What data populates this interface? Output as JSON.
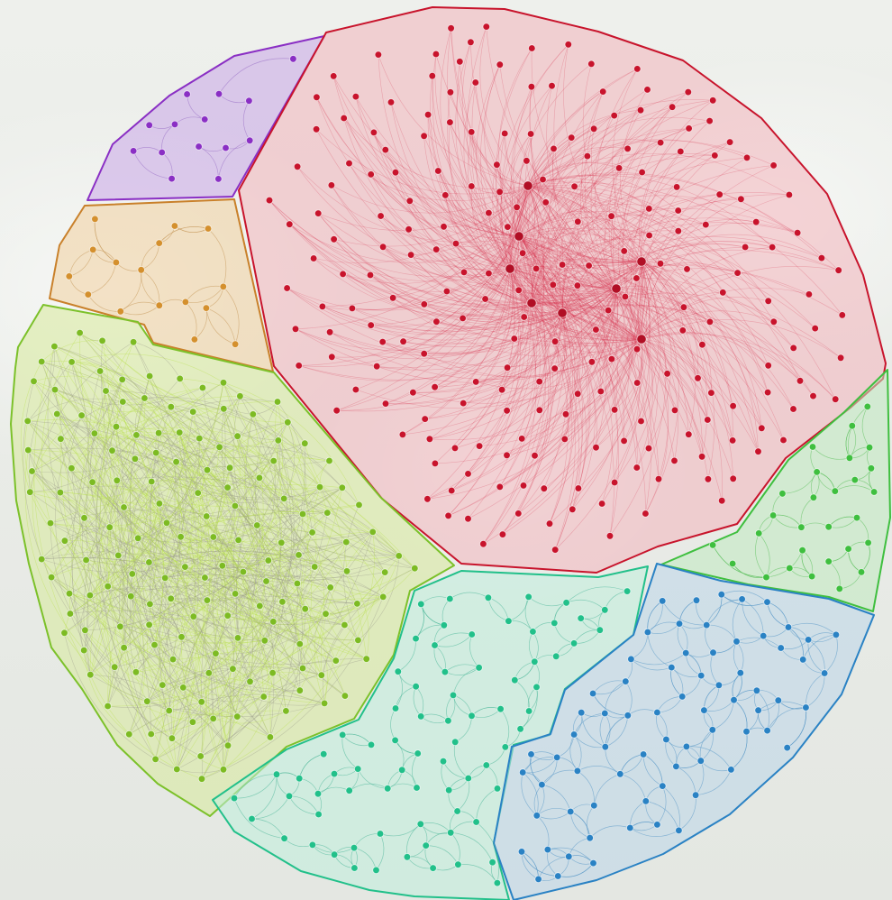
{
  "diagram": {
    "type": "clustered-network-graph",
    "clusters": [
      {
        "id": "purple",
        "color": "#8a2fc4",
        "fill": "#c9a6e8"
      },
      {
        "id": "orange",
        "color": "#c9802a",
        "fill": "#f0cf9e"
      },
      {
        "id": "red",
        "color": "#c8142c",
        "fill": "#f2b4bc"
      },
      {
        "id": "lime",
        "color": "#7cc12a",
        "fill": "#d7ea9a"
      },
      {
        "id": "green",
        "color": "#3fbf3f",
        "fill": "#bfe9c0"
      },
      {
        "id": "teal",
        "color": "#22c08a",
        "fill": "#bfeedd"
      },
      {
        "id": "blue",
        "color": "#2a82c4",
        "fill": "#bcd6ea"
      }
    ]
  }
}
